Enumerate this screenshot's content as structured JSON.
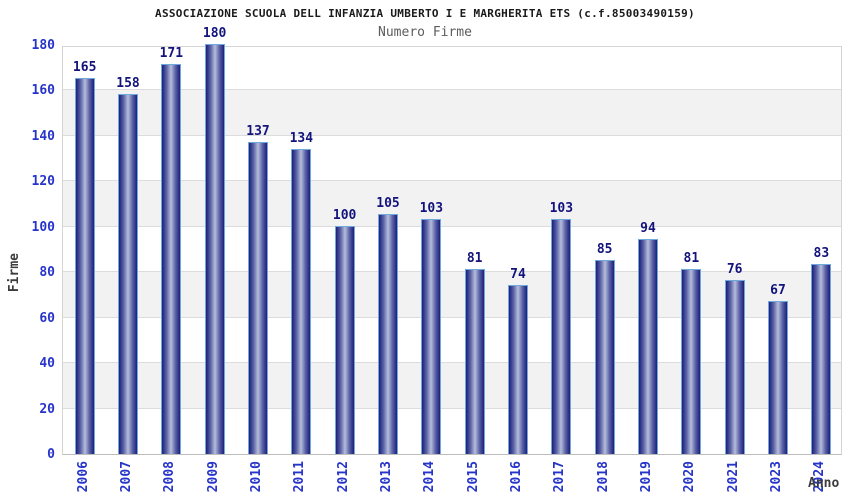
{
  "chart_data": {
    "type": "bar",
    "title": "ASSOCIAZIONE SCUOLA DELL INFANZIA UMBERTO I E MARGHERITA ETS (c.f.85003490159)",
    "subtitle": "Numero Firme",
    "xlabel": "Anno",
    "ylabel": "Firme",
    "categories": [
      "2006",
      "2007",
      "2008",
      "2009",
      "2010",
      "2011",
      "2012",
      "2013",
      "2014",
      "2015",
      "2016",
      "2017",
      "2018",
      "2019",
      "2020",
      "2021",
      "2023",
      "2024"
    ],
    "values": [
      165,
      158,
      171,
      180,
      137,
      134,
      100,
      105,
      103,
      81,
      74,
      103,
      85,
      94,
      81,
      76,
      67,
      83
    ],
    "ylim": [
      0,
      180
    ],
    "ytick_step": 20,
    "yticks": [
      "0",
      "20",
      "40",
      "60",
      "80",
      "100",
      "120",
      "140",
      "160",
      "180"
    ],
    "grid": true,
    "legend": null,
    "bands_alternating": true,
    "colors": {
      "tick_label": "#2734c9",
      "value_label": "#13137c",
      "bar_dark": "#20207a",
      "bar_light": "#b7bdda",
      "bar_border": "#6fa8dc",
      "band_gray": "#f2f2f2",
      "gridline": "#dcdcdc",
      "title": "#1a1a1a",
      "subtitle": "#5d5d5d",
      "axis_title": "#3c3c3c"
    }
  }
}
